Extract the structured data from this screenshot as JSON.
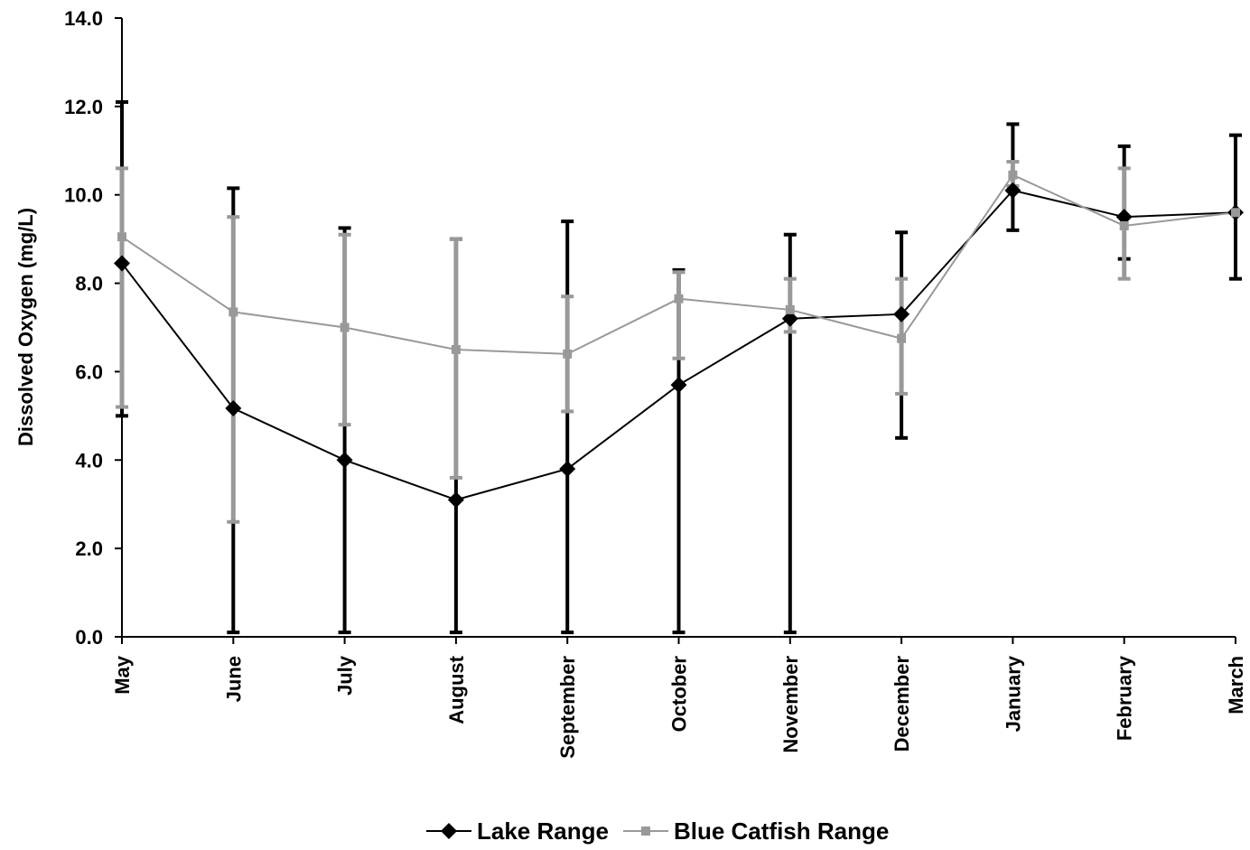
{
  "chart_data": {
    "type": "line",
    "title": "",
    "xlabel": "",
    "ylabel": "Dissolved Oxygen (mg/L)",
    "ylim": [
      0,
      14
    ],
    "yticks": [
      "0.0",
      "2.0",
      "4.0",
      "6.0",
      "8.0",
      "10.0",
      "12.0",
      "14.0"
    ],
    "grid": false,
    "legend_position": "bottom",
    "categories": [
      "May",
      "June",
      "July",
      "August",
      "September",
      "October",
      "November",
      "December",
      "January",
      "February",
      "March"
    ],
    "series": [
      {
        "name": "Lake Range",
        "color": "#000000",
        "marker": "diamond",
        "values": [
          8.45,
          5.17,
          4.0,
          3.1,
          3.8,
          5.7,
          7.2,
          7.3,
          10.1,
          9.5,
          9.6
        ],
        "error_low": [
          5.0,
          0.1,
          0.1,
          0.1,
          0.1,
          0.1,
          0.1,
          4.5,
          9.2,
          8.55,
          8.1
        ],
        "error_high": [
          12.1,
          10.15,
          9.25,
          9.0,
          9.4,
          8.3,
          9.1,
          9.15,
          11.6,
          11.1,
          11.35
        ]
      },
      {
        "name": "Blue Catfish Range",
        "color": "#999999",
        "marker": "square",
        "values": [
          9.05,
          7.35,
          7.0,
          6.5,
          6.4,
          7.65,
          7.4,
          6.75,
          10.45,
          9.3,
          9.6
        ],
        "error_low": [
          5.2,
          2.6,
          4.8,
          3.6,
          5.1,
          6.3,
          6.9,
          5.5,
          10.2,
          8.1,
          9.6
        ],
        "error_high": [
          10.6,
          9.5,
          9.1,
          9.0,
          7.7,
          8.25,
          8.1,
          8.1,
          10.75,
          10.6,
          9.6
        ]
      }
    ]
  }
}
